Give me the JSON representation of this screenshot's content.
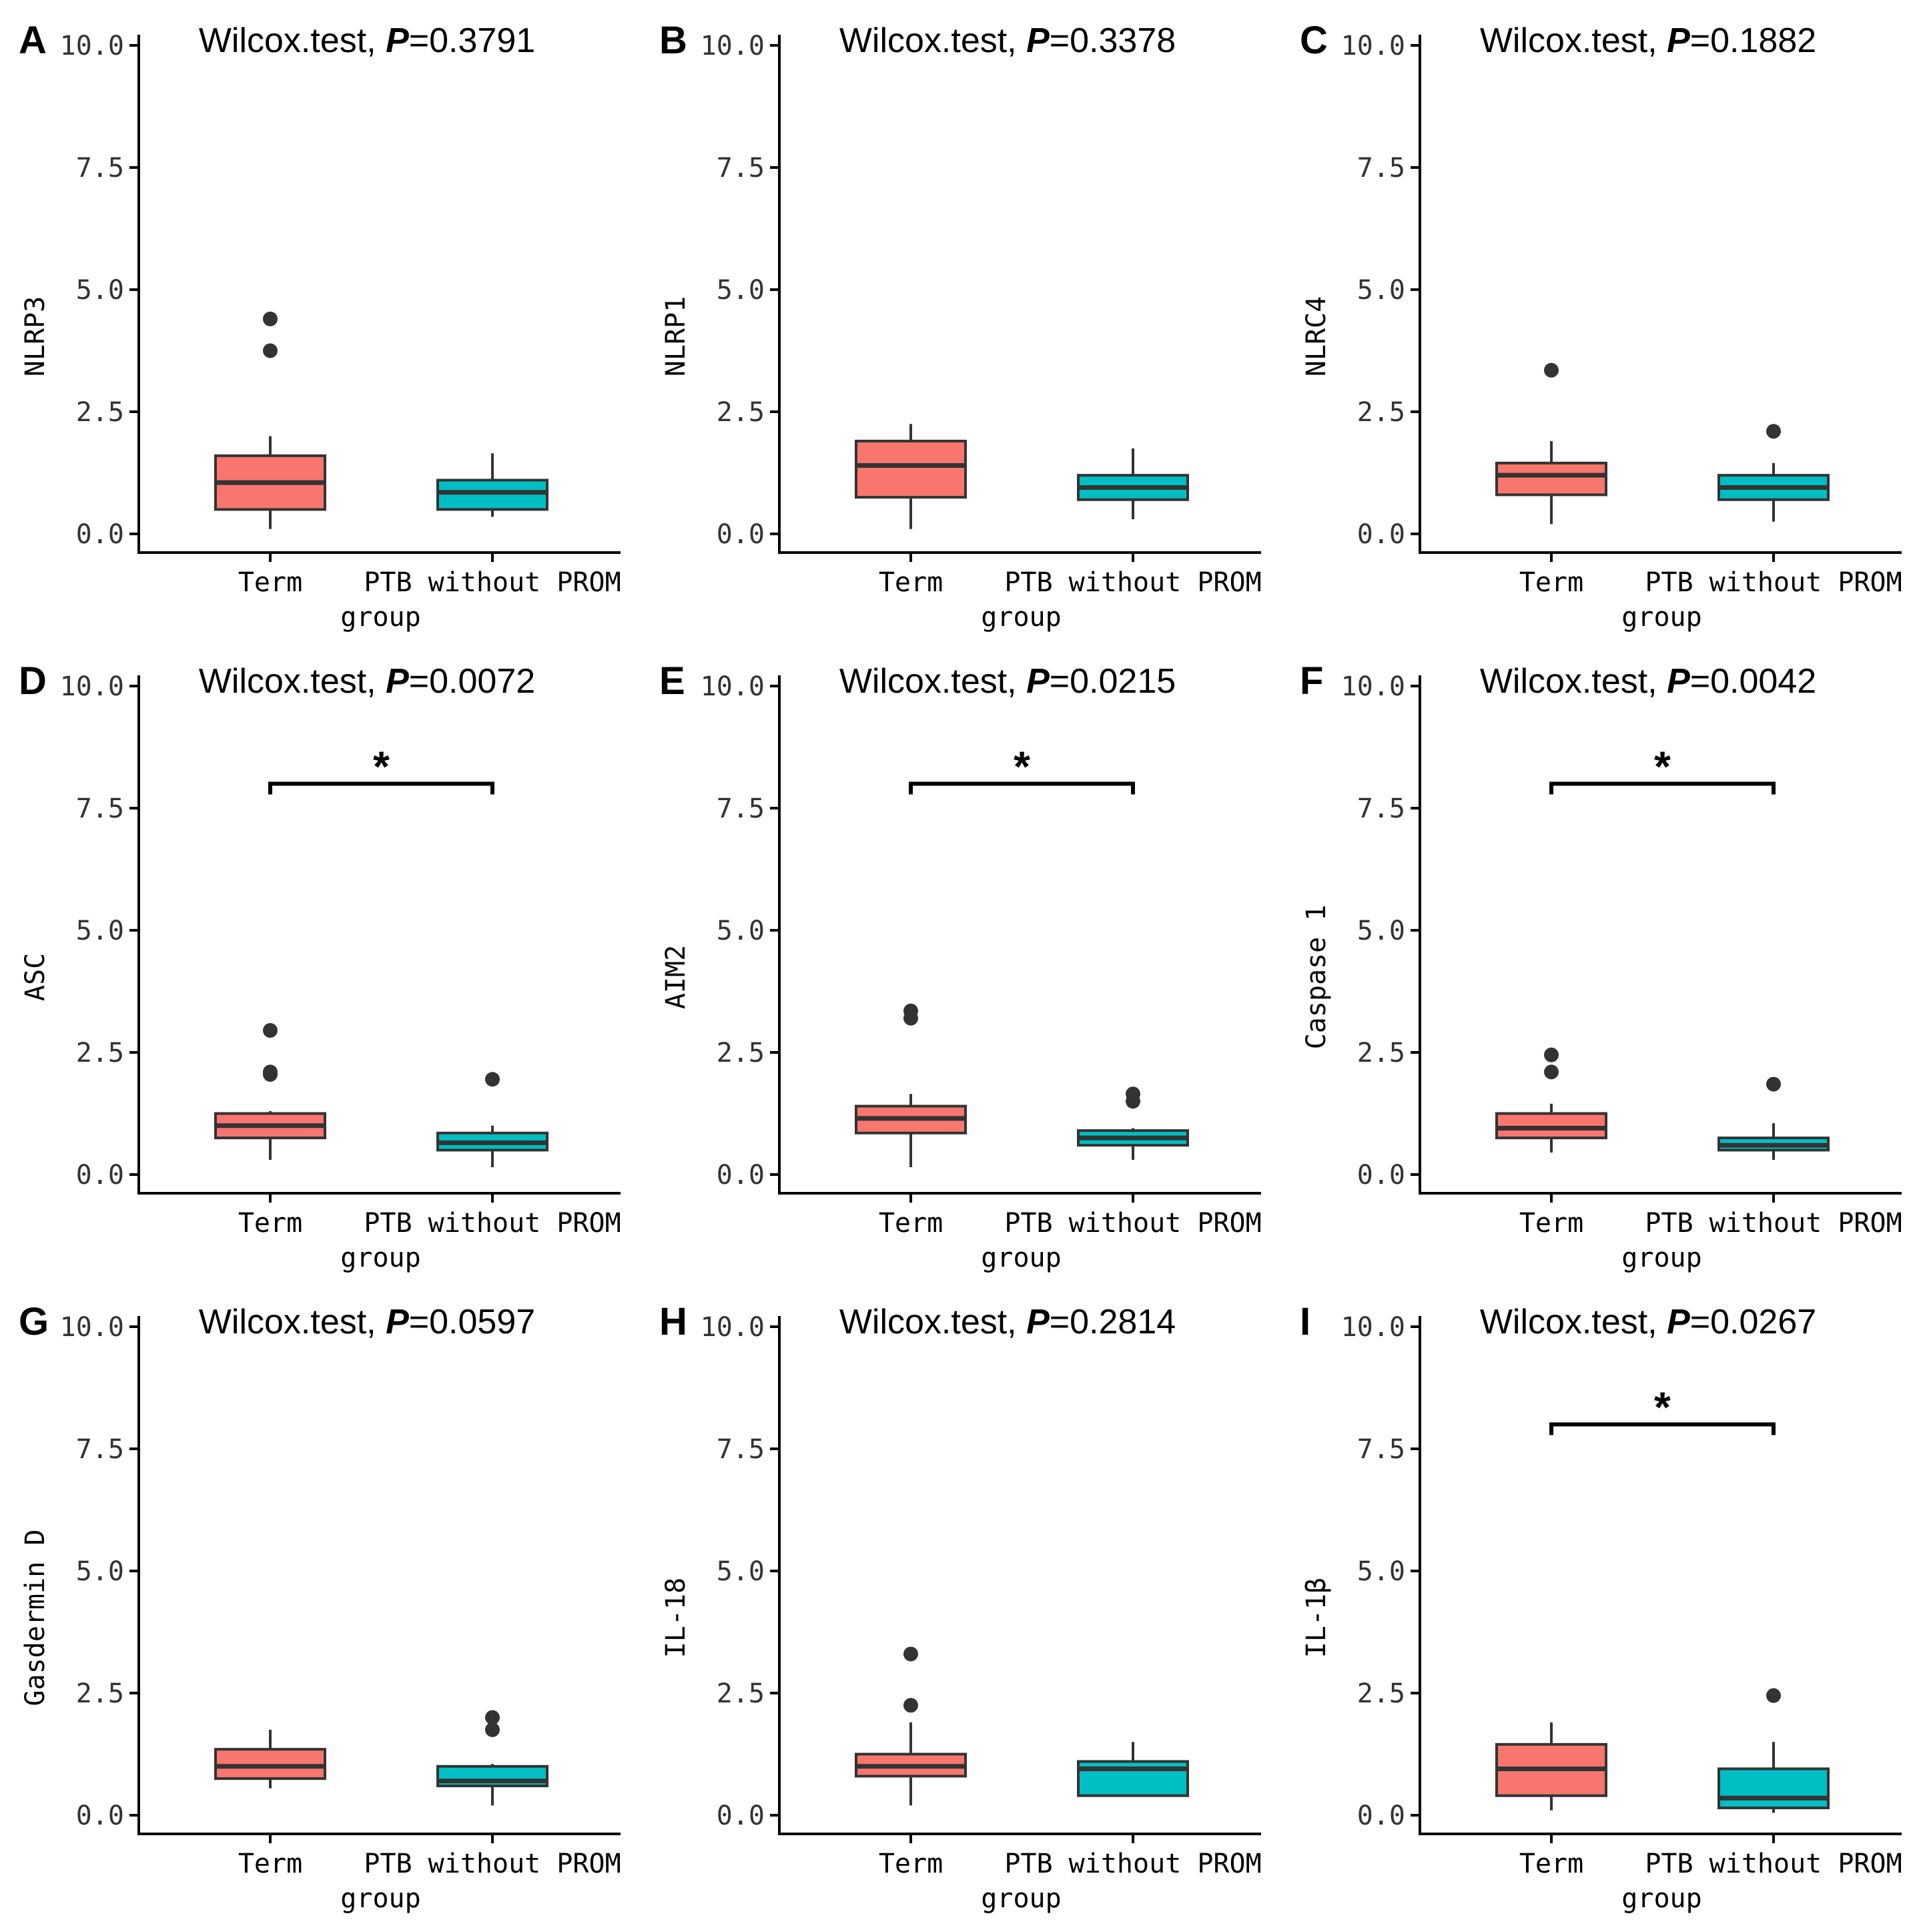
{
  "colors": {
    "term_fill": "#F8766D",
    "ptb_fill": "#00BFC4",
    "box_stroke": "#333333",
    "outlier": "#333333",
    "axis": "#000000"
  },
  "chart_data": [
    {
      "type": "box",
      "panel": "A",
      "test_label": "Wilcox.test, ",
      "p_label": "P",
      "p_value": "=0.3791",
      "ylabel": "NLRP3",
      "xlabel": "group",
      "ylim": [
        0,
        10
      ],
      "yticks": [
        "0.0",
        "2.5",
        "5.0",
        "7.5",
        "10.0"
      ],
      "ytick_values": [
        0,
        2.5,
        5,
        7.5,
        10
      ],
      "categories": [
        "Term",
        "PTB without PROM"
      ],
      "boxes": [
        {
          "category": "Term",
          "whisker_low": 0.1,
          "q1": 0.5,
          "median": 1.05,
          "q3": 1.6,
          "whisker_high": 2.0,
          "outliers": [
            3.75,
            4.4
          ]
        },
        {
          "category": "PTB without PROM",
          "whisker_low": 0.35,
          "q1": 0.5,
          "median": 0.85,
          "q3": 1.1,
          "whisker_high": 1.65,
          "outliers": []
        }
      ],
      "significance": null
    },
    {
      "type": "box",
      "panel": "B",
      "test_label": "Wilcox.test, ",
      "p_label": "P",
      "p_value": "=0.3378",
      "ylabel": "NLRP1",
      "xlabel": "group",
      "ylim": [
        0,
        10
      ],
      "yticks": [
        "0.0",
        "2.5",
        "5.0",
        "7.5",
        "10.0"
      ],
      "ytick_values": [
        0,
        2.5,
        5,
        7.5,
        10
      ],
      "categories": [
        "Term",
        "PTB without PROM"
      ],
      "boxes": [
        {
          "category": "Term",
          "whisker_low": 0.1,
          "q1": 0.75,
          "median": 1.4,
          "q3": 1.9,
          "whisker_high": 2.25,
          "outliers": []
        },
        {
          "category": "PTB without PROM",
          "whisker_low": 0.3,
          "q1": 0.7,
          "median": 0.95,
          "q3": 1.2,
          "whisker_high": 1.75,
          "outliers": []
        }
      ],
      "significance": null
    },
    {
      "type": "box",
      "panel": "C",
      "test_label": "Wilcox.test, ",
      "p_label": "P",
      "p_value": "=0.1882",
      "ylabel": "NLRC4",
      "xlabel": "group",
      "ylim": [
        0,
        10
      ],
      "yticks": [
        "0.0",
        "2.5",
        "5.0",
        "7.5",
        "10.0"
      ],
      "ytick_values": [
        0,
        2.5,
        5,
        7.5,
        10
      ],
      "categories": [
        "Term",
        "PTB without PROM"
      ],
      "boxes": [
        {
          "category": "Term",
          "whisker_low": 0.2,
          "q1": 0.8,
          "median": 1.2,
          "q3": 1.45,
          "whisker_high": 1.9,
          "outliers": [
            3.35
          ]
        },
        {
          "category": "PTB without PROM",
          "whisker_low": 0.25,
          "q1": 0.7,
          "median": 0.95,
          "q3": 1.2,
          "whisker_high": 1.45,
          "outliers": [
            2.1
          ]
        }
      ],
      "significance": null
    },
    {
      "type": "box",
      "panel": "D",
      "test_label": "Wilcox.test, ",
      "p_label": "P",
      "p_value": "=0.0072",
      "ylabel": "ASC",
      "xlabel": "group",
      "ylim": [
        0,
        10
      ],
      "yticks": [
        "0.0",
        "2.5",
        "5.0",
        "7.5",
        "10.0"
      ],
      "ytick_values": [
        0,
        2.5,
        5,
        7.5,
        10
      ],
      "categories": [
        "Term",
        "PTB without PROM"
      ],
      "boxes": [
        {
          "category": "Term",
          "whisker_low": 0.3,
          "q1": 0.75,
          "median": 1.0,
          "q3": 1.25,
          "whisker_high": 1.3,
          "outliers": [
            2.05,
            2.1,
            2.95
          ]
        },
        {
          "category": "PTB without PROM",
          "whisker_low": 0.15,
          "q1": 0.5,
          "median": 0.65,
          "q3": 0.85,
          "whisker_high": 1.0,
          "outliers": [
            1.95
          ]
        }
      ],
      "significance": {
        "y": 8.0,
        "label": "*"
      }
    },
    {
      "type": "box",
      "panel": "E",
      "test_label": "Wilcox.test, ",
      "p_label": "P",
      "p_value": "=0.0215",
      "ylabel": "AIM2",
      "xlabel": "group",
      "ylim": [
        0,
        10
      ],
      "yticks": [
        "0.0",
        "2.5",
        "5.0",
        "7.5",
        "10.0"
      ],
      "ytick_values": [
        0,
        2.5,
        5,
        7.5,
        10
      ],
      "categories": [
        "Term",
        "PTB without PROM"
      ],
      "boxes": [
        {
          "category": "Term",
          "whisker_low": 0.15,
          "q1": 0.85,
          "median": 1.15,
          "q3": 1.4,
          "whisker_high": 1.65,
          "outliers": [
            3.2,
            3.35
          ]
        },
        {
          "category": "PTB without PROM",
          "whisker_low": 0.3,
          "q1": 0.6,
          "median": 0.75,
          "q3": 0.9,
          "whisker_high": 0.95,
          "outliers": [
            1.5,
            1.65
          ]
        }
      ],
      "significance": {
        "y": 8.0,
        "label": "*"
      }
    },
    {
      "type": "box",
      "panel": "F",
      "test_label": "Wilcox.test, ",
      "p_label": "P",
      "p_value": "=0.0042",
      "ylabel": "Caspase 1",
      "xlabel": "group",
      "ylim": [
        0,
        10
      ],
      "yticks": [
        "0.0",
        "2.5",
        "5.0",
        "7.5",
        "10.0"
      ],
      "ytick_values": [
        0,
        2.5,
        5,
        7.5,
        10
      ],
      "categories": [
        "Term",
        "PTB without PROM"
      ],
      "boxes": [
        {
          "category": "Term",
          "whisker_low": 0.45,
          "q1": 0.75,
          "median": 0.95,
          "q3": 1.25,
          "whisker_high": 1.45,
          "outliers": [
            2.1,
            2.45
          ]
        },
        {
          "category": "PTB without PROM",
          "whisker_low": 0.3,
          "q1": 0.5,
          "median": 0.6,
          "q3": 0.75,
          "whisker_high": 1.05,
          "outliers": [
            1.85
          ]
        }
      ],
      "significance": {
        "y": 8.0,
        "label": "*"
      }
    },
    {
      "type": "box",
      "panel": "G",
      "test_label": "Wilcox.test, ",
      "p_label": "P",
      "p_value": "=0.0597",
      "ylabel": "Gasdermin D",
      "xlabel": "group",
      "ylim": [
        0,
        10
      ],
      "yticks": [
        "0.0",
        "2.5",
        "5.0",
        "7.5",
        "10.0"
      ],
      "ytick_values": [
        0,
        2.5,
        5,
        7.5,
        10
      ],
      "categories": [
        "Term",
        "PTB without PROM"
      ],
      "boxes": [
        {
          "category": "Term",
          "whisker_low": 0.55,
          "q1": 0.75,
          "median": 1.0,
          "q3": 1.35,
          "whisker_high": 1.75,
          "outliers": []
        },
        {
          "category": "PTB without PROM",
          "whisker_low": 0.2,
          "q1": 0.6,
          "median": 0.7,
          "q3": 1.0,
          "whisker_high": 1.05,
          "outliers": [
            1.75,
            2.0
          ]
        }
      ],
      "significance": null
    },
    {
      "type": "box",
      "panel": "H",
      "test_label": "Wilcox.test, ",
      "p_label": "P",
      "p_value": "=0.2814",
      "ylabel": "IL-18",
      "xlabel": "group",
      "ylim": [
        0,
        10
      ],
      "yticks": [
        "0.0",
        "2.5",
        "5.0",
        "7.5",
        "10.0"
      ],
      "ytick_values": [
        0,
        2.5,
        5,
        7.5,
        10
      ],
      "categories": [
        "Term",
        "PTB without PROM"
      ],
      "boxes": [
        {
          "category": "Term",
          "whisker_low": 0.2,
          "q1": 0.8,
          "median": 1.0,
          "q3": 1.25,
          "whisker_high": 1.9,
          "outliers": [
            2.25,
            3.3
          ]
        },
        {
          "category": "PTB without PROM",
          "whisker_low": 0.4,
          "q1": 0.4,
          "median": 0.95,
          "q3": 1.1,
          "whisker_high": 1.5,
          "outliers": []
        }
      ],
      "significance": null
    },
    {
      "type": "box",
      "panel": "I",
      "test_label": "Wilcox.test, ",
      "p_label": "P",
      "p_value": "=0.0267",
      "ylabel": "IL-1β",
      "xlabel": "group",
      "ylim": [
        0,
        10
      ],
      "yticks": [
        "0.0",
        "2.5",
        "5.0",
        "7.5",
        "10.0"
      ],
      "ytick_values": [
        0,
        2.5,
        5,
        7.5,
        10
      ],
      "categories": [
        "Term",
        "PTB without PROM"
      ],
      "boxes": [
        {
          "category": "Term",
          "whisker_low": 0.1,
          "q1": 0.4,
          "median": 0.95,
          "q3": 1.45,
          "whisker_high": 1.9,
          "outliers": []
        },
        {
          "category": "PTB without PROM",
          "whisker_low": 0.05,
          "q1": 0.15,
          "median": 0.35,
          "q3": 0.95,
          "whisker_high": 1.5,
          "outliers": [
            2.45
          ]
        }
      ],
      "significance": {
        "y": 8.0,
        "label": "*"
      }
    }
  ]
}
